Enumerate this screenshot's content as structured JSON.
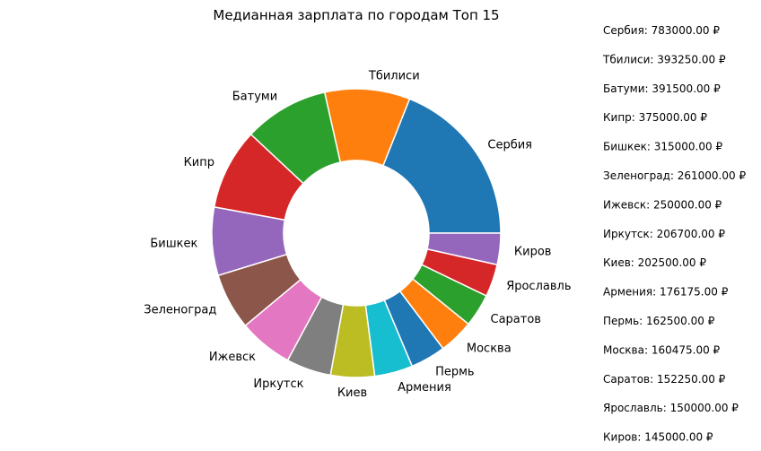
{
  "chart_data": {
    "type": "pie",
    "title": "Медианная зарплата по городам Топ 15",
    "donut": true,
    "categories": [
      "Сербия",
      "Тбилиси",
      "Батуми",
      "Кипр",
      "Бишкек",
      "Зеленоград",
      "Ижевск",
      "Иркутск",
      "Киев",
      "Армения",
      "Пермь",
      "Москва",
      "Саратов",
      "Ярославль",
      "Киров"
    ],
    "values": [
      783000,
      393250,
      391500,
      375000,
      315000,
      261000,
      250000,
      206700,
      202500,
      176175,
      162500,
      160475,
      152250,
      150000,
      145000
    ],
    "colors": [
      "#1f77b4",
      "#ff7f0e",
      "#2ca02c",
      "#d62728",
      "#9467bd",
      "#8c564b",
      "#e377c2",
      "#7f7f7f",
      "#bcbd22",
      "#17becf",
      "#1f77b4",
      "#ff7f0e",
      "#2ca02c",
      "#d62728",
      "#9467bd"
    ],
    "legend": [
      "Сербия: 783000.00 ₽",
      "Тбилиси: 393250.00 ₽",
      "Батуми: 391500.00 ₽",
      "Кипр: 375000.00 ₽",
      "Бишкек: 315000.00 ₽",
      "Зеленоград: 261000.00 ₽",
      "Ижевск: 250000.00 ₽",
      "Иркутск: 206700.00 ₽",
      "Киев: 202500.00 ₽",
      "Армения: 176175.00 ₽",
      "Пермь: 162500.00 ₽",
      "Москва: 160475.00 ₽",
      "Саратов: 152250.00 ₽",
      "Ярославль: 150000.00 ₽",
      "Киров: 145000.00 ₽"
    ],
    "legend_position": "right"
  }
}
